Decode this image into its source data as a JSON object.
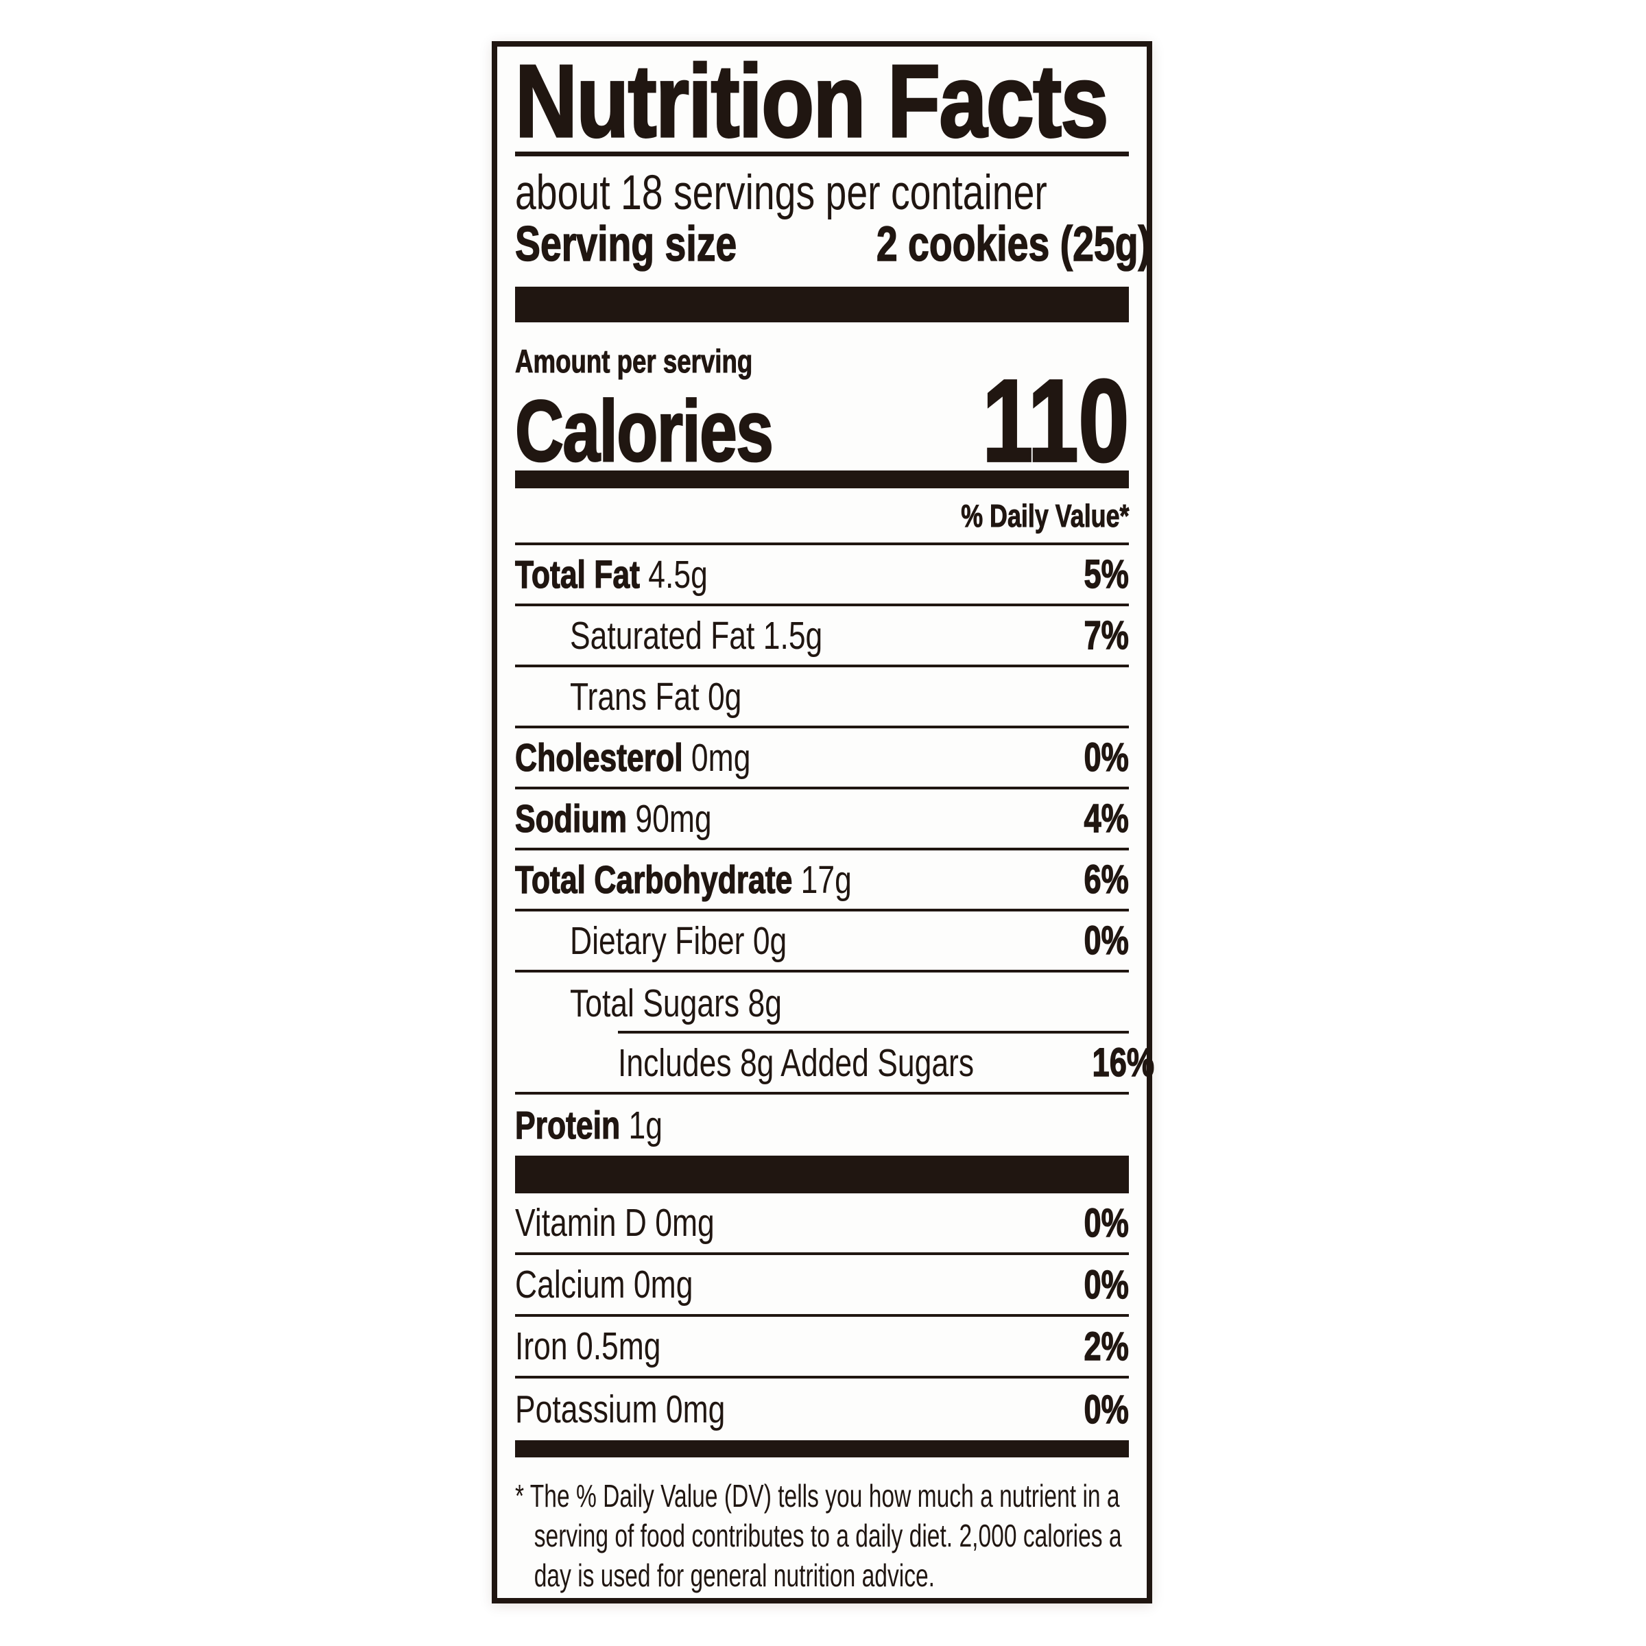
{
  "label": {
    "title": "Nutrition Facts",
    "servings_per_container": "about 18 servings per container",
    "serving_size": {
      "label": "Serving size",
      "value": "2 cookies (25g)"
    },
    "amount_per_serving": "Amount per serving",
    "calories": {
      "label": "Calories",
      "value": "110"
    },
    "daily_value_header": "% Daily Value*",
    "nutrients": [
      {
        "name": "Total Fat",
        "amount": "4.5g",
        "dv": "5%",
        "bold": true,
        "indent": 0
      },
      {
        "name": "Saturated Fat",
        "amount": "1.5g",
        "dv": "7%",
        "bold": false,
        "indent": 1
      },
      {
        "name": "Trans Fat",
        "amount": "0g",
        "dv": "",
        "bold": false,
        "indent": 1
      },
      {
        "name": "Cholesterol",
        "amount": "0mg",
        "dv": "0%",
        "bold": true,
        "indent": 0
      },
      {
        "name": "Sodium",
        "amount": "90mg",
        "dv": "4%",
        "bold": true,
        "indent": 0
      },
      {
        "name": "Total Carbohydrate",
        "amount": "17g",
        "dv": "6%",
        "bold": true,
        "indent": 0
      },
      {
        "name": "Dietary Fiber",
        "amount": "0g",
        "dv": "0%",
        "bold": false,
        "indent": 1
      },
      {
        "name": "Total Sugars",
        "amount": "8g",
        "dv": "",
        "bold": false,
        "indent": 1,
        "partial_rule_below": true
      },
      {
        "name": "Includes 8g Added Sugars",
        "amount": "",
        "dv": "16%",
        "bold": false,
        "indent": 2
      },
      {
        "name": "Protein",
        "amount": "1g",
        "dv": "",
        "bold": true,
        "indent": 0,
        "no_rule_below": true
      }
    ],
    "micronutrients": [
      {
        "name": "Vitamin D",
        "amount": "0mg",
        "dv": "0%"
      },
      {
        "name": "Calcium",
        "amount": "0mg",
        "dv": "0%"
      },
      {
        "name": "Iron",
        "amount": "0.5mg",
        "dv": "2%"
      },
      {
        "name": "Potassium",
        "amount": "0mg",
        "dv": "0%"
      }
    ],
    "footnote": {
      "marker": "*",
      "text": "The % Daily Value (DV) tells you how much a nutrient in a serving of food contributes to a daily diet. 2,000 calories a day is used for general nutrition advice."
    },
    "colors": {
      "ink": "#201611",
      "paper": "#fdfdfc"
    }
  }
}
